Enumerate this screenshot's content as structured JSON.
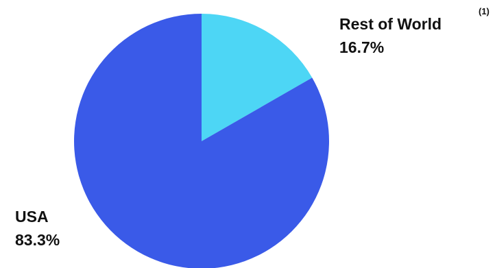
{
  "chart_data": {
    "type": "pie",
    "slices": [
      {
        "label": "Rest of World",
        "value": 16.7,
        "value_label": "16.7%",
        "color": "#4dd6f5"
      },
      {
        "label": "USA",
        "value": 83.3,
        "value_label": "83.3%",
        "color": "#3a5ae8"
      }
    ],
    "start_angle_deg": 0,
    "direction": "clockwise",
    "footnote": "(1)",
    "background": "#ffffff"
  }
}
